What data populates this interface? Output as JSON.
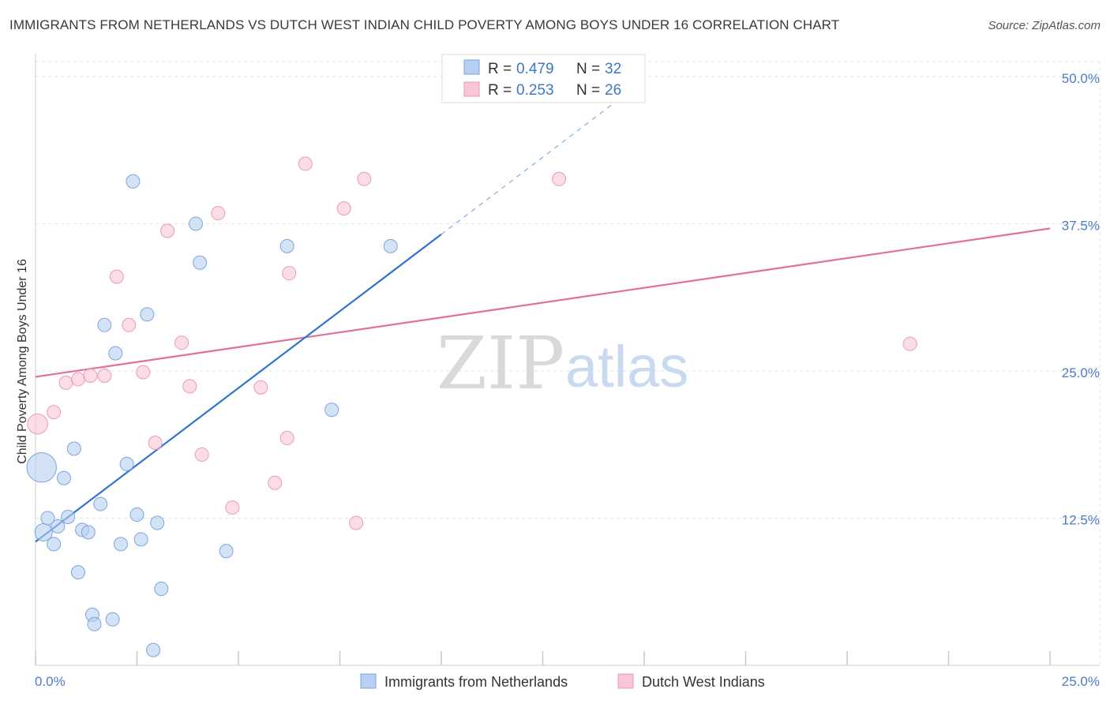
{
  "header": {
    "title": "IMMIGRANTS FROM NETHERLANDS VS DUTCH WEST INDIAN CHILD POVERTY AMONG BOYS UNDER 16 CORRELATION CHART",
    "source": "Source: ZipAtlas.com"
  },
  "watermark": {
    "zip": "ZIP",
    "atlas": "atlas"
  },
  "colors": {
    "blue_fill": "#b7cff0",
    "blue_stroke": "#7aa6e0",
    "blue_line": "#2f74cf",
    "pink_fill": "#f8c6d4",
    "pink_stroke": "#ec9ab3",
    "pink_line": "#e36f98",
    "grid": "#e3e3e3",
    "tick_text": "#4a7cc7"
  },
  "legend": {
    "rows": [
      {
        "r_label": "R = ",
        "r_value": "0.479",
        "n_label": "N = ",
        "n_value": "32"
      },
      {
        "r_label": "R = ",
        "r_value": "0.253",
        "n_label": "N = ",
        "n_value": "26"
      }
    ]
  },
  "bottom_legend": {
    "items": [
      "Immigrants from Netherlands",
      "Dutch West Indians"
    ]
  },
  "chart_data": {
    "type": "scatter",
    "title": "IMMIGRANTS FROM NETHERLANDS VS DUTCH WEST INDIAN CHILD POVERTY AMONG BOYS UNDER 16 CORRELATION CHART",
    "xlabel": "",
    "ylabel": "Child Poverty Among Boys Under 16",
    "xlim": [
      0,
      25
    ],
    "ylim": [
      0,
      52
    ],
    "x_tick_labels": [
      "0.0%",
      "25.0%"
    ],
    "y_ticks": [
      12.5,
      25.0,
      37.5,
      50.0
    ],
    "y_tick_labels": [
      "12.5%",
      "25.0%",
      "37.5%",
      "50.0%"
    ],
    "grid": true,
    "legend_position": "top-center",
    "series": [
      {
        "name": "Immigrants from Netherlands",
        "points": [
          [
            0.15,
            16.8,
            2.2
          ],
          [
            0.2,
            11.3,
            1.3
          ],
          [
            0.3,
            12.5,
            1
          ],
          [
            0.45,
            10.3,
            1
          ],
          [
            0.55,
            11.8,
            1
          ],
          [
            0.7,
            15.9,
            1
          ],
          [
            0.8,
            12.6,
            1
          ],
          [
            0.95,
            18.4,
            1
          ],
          [
            1.05,
            7.9,
            1
          ],
          [
            1.15,
            11.5,
            1
          ],
          [
            1.3,
            11.3,
            1
          ],
          [
            1.4,
            4.3,
            1
          ],
          [
            1.45,
            3.5,
            1
          ],
          [
            1.6,
            13.7,
            1
          ],
          [
            1.7,
            28.9,
            1
          ],
          [
            1.9,
            3.9,
            1
          ],
          [
            1.97,
            26.5,
            1
          ],
          [
            2.1,
            10.3,
            1
          ],
          [
            2.25,
            17.1,
            1
          ],
          [
            2.4,
            41.1,
            1
          ],
          [
            2.5,
            12.8,
            1
          ],
          [
            2.6,
            10.7,
            1
          ],
          [
            2.75,
            29.8,
            1
          ],
          [
            2.9,
            1.3,
            1
          ],
          [
            3.0,
            12.1,
            1
          ],
          [
            3.1,
            6.5,
            1
          ],
          [
            3.95,
            37.5,
            1
          ],
          [
            4.05,
            34.2,
            1
          ],
          [
            4.7,
            9.7,
            1
          ],
          [
            6.2,
            35.6,
            1
          ],
          [
            7.3,
            21.7,
            1
          ],
          [
            8.75,
            35.6,
            1
          ]
        ],
        "trend": {
          "x1": 0,
          "y1": 10.5,
          "x2": 10,
          "y2": 36.6,
          "dashed_to_x": 15,
          "dashed_to_y": 49.7
        }
      },
      {
        "name": "Dutch West Indians",
        "points": [
          [
            0.05,
            20.5,
            1.5
          ],
          [
            0.45,
            21.5,
            1
          ],
          [
            0.75,
            24.0,
            1
          ],
          [
            1.05,
            24.3,
            1
          ],
          [
            1.35,
            24.6,
            1
          ],
          [
            1.7,
            24.6,
            1
          ],
          [
            2.0,
            33.0,
            1
          ],
          [
            2.3,
            28.9,
            1
          ],
          [
            2.65,
            24.9,
            1
          ],
          [
            2.95,
            18.9,
            1
          ],
          [
            3.25,
            36.9,
            1
          ],
          [
            3.6,
            27.4,
            1
          ],
          [
            3.8,
            23.7,
            1
          ],
          [
            4.1,
            17.9,
            1
          ],
          [
            4.5,
            38.4,
            1
          ],
          [
            4.85,
            13.4,
            1
          ],
          [
            5.55,
            23.6,
            1
          ],
          [
            5.9,
            15.5,
            1
          ],
          [
            6.2,
            19.3,
            1
          ],
          [
            6.25,
            33.3,
            1
          ],
          [
            6.65,
            42.6,
            1
          ],
          [
            7.6,
            38.8,
            1
          ],
          [
            7.9,
            12.1,
            1
          ],
          [
            8.1,
            41.3,
            1
          ],
          [
            12.9,
            41.3,
            1
          ],
          [
            21.55,
            27.3,
            1
          ]
        ],
        "trend": {
          "x1": 0,
          "y1": 24.5,
          "x2": 25,
          "y2": 37.1
        }
      }
    ]
  }
}
